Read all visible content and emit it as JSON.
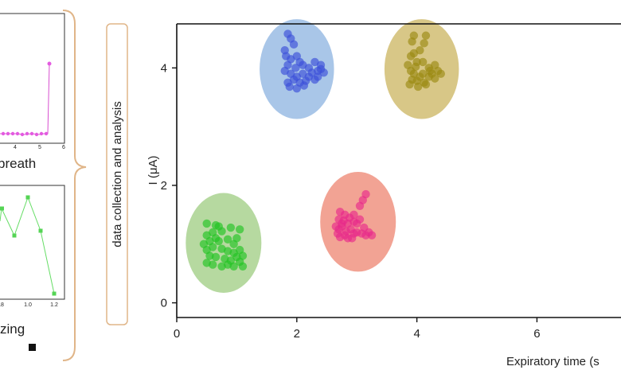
{
  "left_panels": {
    "top": {
      "caption": "breath",
      "ticks": [
        "4",
        "5",
        "6"
      ]
    },
    "bottom": {
      "caption": "zing",
      "ticks": [
        ".8",
        "1.0",
        "1.2"
      ]
    }
  },
  "process_label": "data collection and analysis",
  "chart_data": {
    "type": "scatter",
    "title": "",
    "xlabel": "Expiratory time (s",
    "ylabel": "I (μA)",
    "xlim": [
      0,
      7.4
    ],
    "ylim": [
      -0.25,
      4.75
    ],
    "xticks": [
      0,
      2,
      4,
      6
    ],
    "yticks": [
      0,
      2,
      4
    ],
    "grid": false,
    "series": [
      {
        "color": "#3a4fd8",
        "ellipse": {
          "cx": 2.0,
          "cy": 3.98,
          "rx": 0.62,
          "ry": 0.85,
          "fill": "#a9c6e8"
        },
        "points": [
          [
            1.85,
            4.58
          ],
          [
            1.9,
            4.5
          ],
          [
            1.95,
            4.4
          ],
          [
            1.8,
            4.3
          ],
          [
            1.82,
            4.2
          ],
          [
            1.9,
            4.15
          ],
          [
            2.0,
            4.2
          ],
          [
            2.05,
            4.1
          ],
          [
            2.1,
            4.05
          ],
          [
            2.2,
            4.0
          ],
          [
            2.3,
            4.1
          ],
          [
            2.35,
            3.95
          ],
          [
            2.4,
            4.05
          ],
          [
            1.85,
            4.05
          ],
          [
            1.8,
            3.95
          ],
          [
            1.9,
            3.9
          ],
          [
            2.0,
            3.85
          ],
          [
            2.1,
            3.9
          ],
          [
            2.2,
            3.85
          ],
          [
            1.95,
            3.8
          ],
          [
            2.05,
            3.75
          ],
          [
            2.15,
            3.78
          ],
          [
            1.85,
            3.75
          ],
          [
            2.25,
            3.92
          ],
          [
            2.3,
            3.8
          ],
          [
            2.35,
            3.85
          ],
          [
            1.88,
            3.68
          ],
          [
            2.0,
            3.65
          ],
          [
            2.12,
            3.7
          ],
          [
            2.4,
            3.98
          ],
          [
            2.45,
            3.92
          ],
          [
            1.98,
            4.0
          ]
        ]
      },
      {
        "color": "#9b8a12",
        "ellipse": {
          "cx": 4.08,
          "cy": 3.98,
          "rx": 0.62,
          "ry": 0.85,
          "fill": "#d8c787"
        },
        "points": [
          [
            3.95,
            4.55
          ],
          [
            4.15,
            4.55
          ],
          [
            3.92,
            4.45
          ],
          [
            4.12,
            4.42
          ],
          [
            3.9,
            4.2
          ],
          [
            3.95,
            4.25
          ],
          [
            4.05,
            4.3
          ],
          [
            4.0,
            4.1
          ],
          [
            4.1,
            4.1
          ],
          [
            4.2,
            4.0
          ],
          [
            4.3,
            4.05
          ],
          [
            4.35,
            3.95
          ],
          [
            4.4,
            3.9
          ],
          [
            3.85,
            4.05
          ],
          [
            3.9,
            3.95
          ],
          [
            3.95,
            3.9
          ],
          [
            4.05,
            3.85
          ],
          [
            4.1,
            3.9
          ],
          [
            4.2,
            3.85
          ],
          [
            3.92,
            3.8
          ],
          [
            4.0,
            3.78
          ],
          [
            4.12,
            3.75
          ],
          [
            4.25,
            3.9
          ],
          [
            3.88,
            3.72
          ],
          [
            4.02,
            3.68
          ],
          [
            4.15,
            3.72
          ],
          [
            4.3,
            3.82
          ],
          [
            4.22,
            3.95
          ],
          [
            3.98,
            4.02
          ]
        ]
      },
      {
        "color": "#22c322",
        "ellipse": {
          "cx": 0.78,
          "cy": 1.02,
          "rx": 0.63,
          "ry": 0.85,
          "fill": "#b6d9a0"
        },
        "points": [
          [
            0.5,
            1.35
          ],
          [
            0.65,
            1.32
          ],
          [
            0.7,
            1.3
          ],
          [
            0.9,
            1.28
          ],
          [
            0.6,
            1.2
          ],
          [
            0.75,
            1.22
          ],
          [
            0.5,
            1.15
          ],
          [
            0.55,
            1.05
          ],
          [
            0.65,
            1.1
          ],
          [
            0.7,
            1.05
          ],
          [
            0.85,
            1.08
          ],
          [
            0.95,
            1.0
          ],
          [
            1.05,
            1.25
          ],
          [
            1.0,
            1.1
          ],
          [
            0.45,
            1.0
          ],
          [
            0.5,
            0.9
          ],
          [
            0.6,
            0.95
          ],
          [
            0.75,
            0.92
          ],
          [
            0.85,
            0.88
          ],
          [
            0.95,
            0.85
          ],
          [
            1.05,
            0.9
          ],
          [
            0.55,
            0.8
          ],
          [
            0.65,
            0.78
          ],
          [
            0.8,
            0.75
          ],
          [
            0.9,
            0.72
          ],
          [
            1.0,
            0.78
          ],
          [
            1.1,
            0.8
          ],
          [
            0.5,
            0.68
          ],
          [
            0.6,
            0.65
          ],
          [
            0.75,
            0.62
          ],
          [
            0.85,
            0.65
          ],
          [
            0.95,
            0.62
          ],
          [
            1.05,
            0.7
          ],
          [
            1.1,
            0.62
          ]
        ]
      },
      {
        "color": "#e82a8a",
        "ellipse": {
          "cx": 3.02,
          "cy": 1.38,
          "rx": 0.63,
          "ry": 0.85,
          "fill": "#f2a394"
        },
        "points": [
          [
            3.15,
            1.85
          ],
          [
            3.1,
            1.75
          ],
          [
            3.05,
            1.65
          ],
          [
            2.72,
            1.55
          ],
          [
            2.8,
            1.5
          ],
          [
            2.7,
            1.42
          ],
          [
            2.78,
            1.4
          ],
          [
            2.88,
            1.45
          ],
          [
            2.95,
            1.38
          ],
          [
            3.0,
            1.35
          ],
          [
            3.05,
            1.42
          ],
          [
            3.12,
            1.28
          ],
          [
            2.65,
            1.3
          ],
          [
            2.7,
            1.25
          ],
          [
            2.75,
            1.3
          ],
          [
            2.82,
            1.22
          ],
          [
            2.9,
            1.25
          ],
          [
            2.95,
            1.18
          ],
          [
            3.0,
            1.2
          ],
          [
            3.15,
            1.15
          ],
          [
            3.2,
            1.2
          ],
          [
            3.25,
            1.15
          ],
          [
            2.68,
            1.18
          ],
          [
            2.72,
            1.12
          ],
          [
            2.8,
            1.15
          ],
          [
            2.85,
            1.1
          ],
          [
            2.92,
            1.1
          ],
          [
            3.08,
            1.18
          ],
          [
            2.75,
            1.35
          ],
          [
            2.85,
            1.35
          ],
          [
            2.95,
            1.5
          ]
        ]
      }
    ]
  }
}
